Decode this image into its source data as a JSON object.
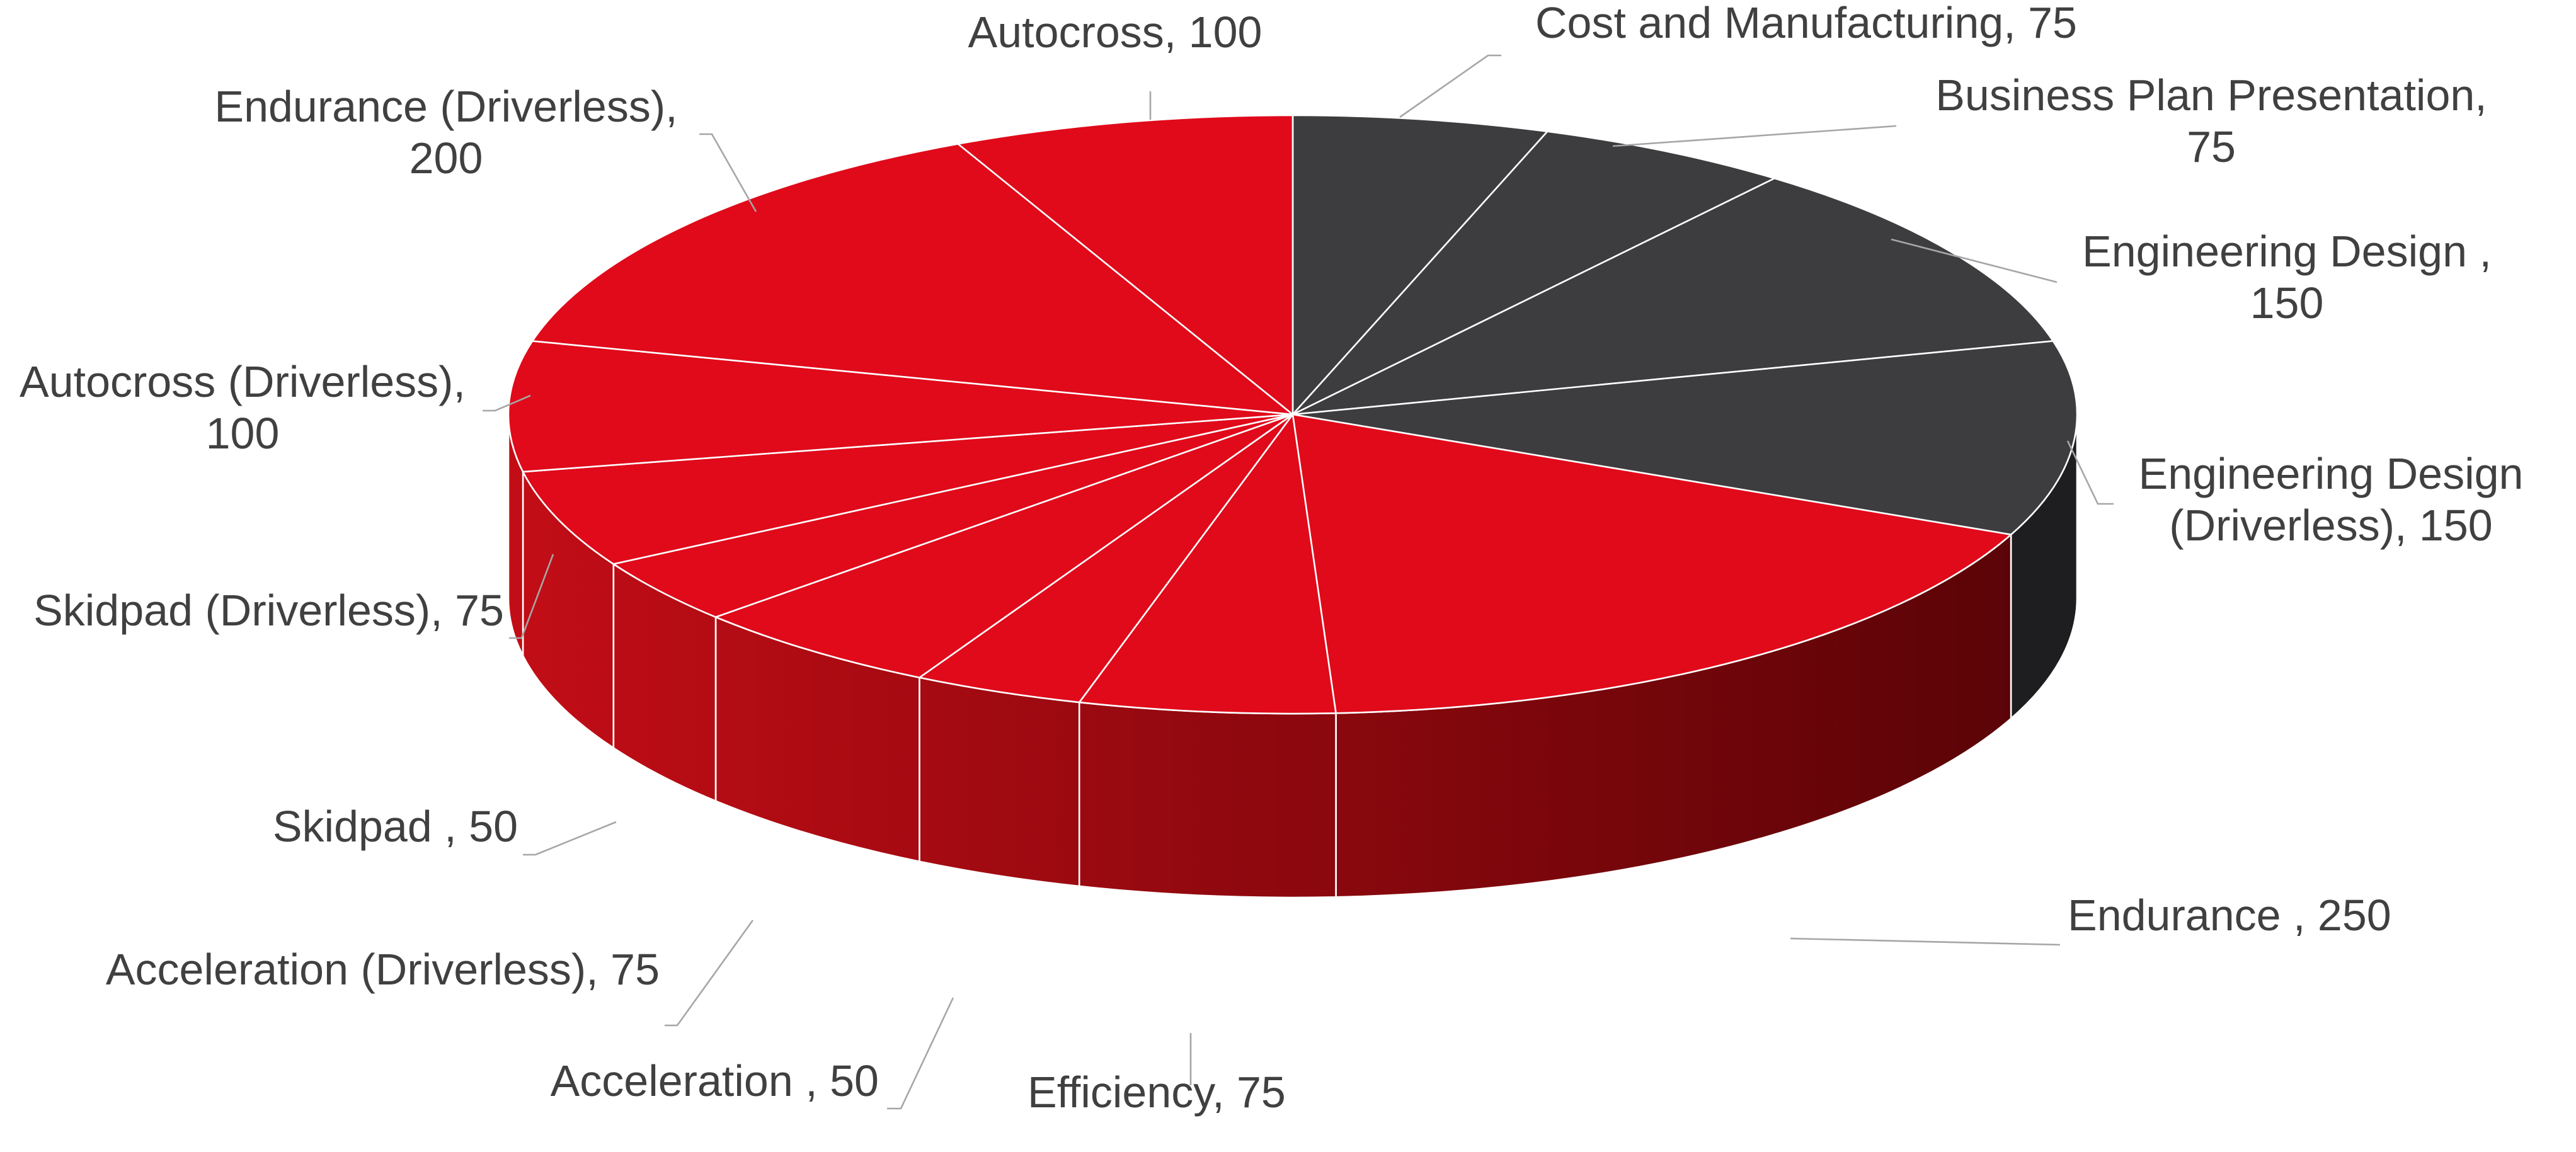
{
  "chart_data": {
    "type": "pie",
    "style": "3d",
    "colors": {
      "dynamic_top": "#e00a1a",
      "static_top": "#3d3d3f",
      "side_light": "#c20d16",
      "side_dark": "#560306",
      "slice_border": "#ffffff",
      "label_text": "#404040",
      "leader_line": "#a6a6a6"
    },
    "slices": [
      {
        "label": "Cost and Manufacturing",
        "value": 75,
        "group": "static",
        "text": [
          "Cost and Manufacturing, 75"
        ]
      },
      {
        "label": "Business Plan Presentation",
        "value": 75,
        "group": "static",
        "text": [
          "Business Plan Presentation,",
          "75"
        ]
      },
      {
        "label": "Engineering Design",
        "value": 150,
        "group": "static",
        "text": [
          "Engineering Design  ,",
          "150"
        ]
      },
      {
        "label": "Engineering Design (Driverless)",
        "value": 150,
        "group": "static",
        "text": [
          "Engineering Design",
          "(Driverless), 150"
        ]
      },
      {
        "label": "Endurance",
        "value": 250,
        "group": "dynamic",
        "text": [
          "Endurance  , 250"
        ]
      },
      {
        "label": "Efficiency",
        "value": 75,
        "group": "dynamic",
        "text": [
          "Efficiency, 75"
        ]
      },
      {
        "label": "Acceleration",
        "value": 50,
        "group": "dynamic",
        "text": [
          "Acceleration  , 50"
        ]
      },
      {
        "label": "Acceleration (Driverless)",
        "value": 75,
        "group": "dynamic",
        "text": [
          "Acceleration (Driverless), 75"
        ]
      },
      {
        "label": "Skidpad",
        "value": 50,
        "group": "dynamic",
        "text": [
          "Skidpad  , 50"
        ]
      },
      {
        "label": "Skidpad (Driverless)",
        "value": 75,
        "group": "dynamic",
        "text": [
          "Skidpad (Driverless), 75"
        ]
      },
      {
        "label": "Autocross (Driverless)",
        "value": 100,
        "group": "dynamic",
        "text": [
          "Autocross (Driverless),",
          "100"
        ]
      },
      {
        "label": "Endurance (Driverless)",
        "value": 200,
        "group": "dynamic",
        "text": [
          "Endurance (Driverless),",
          "200"
        ]
      },
      {
        "label": "Autocross",
        "value": 100,
        "group": "dynamic",
        "text": [
          "Autocross, 100"
        ]
      }
    ]
  }
}
